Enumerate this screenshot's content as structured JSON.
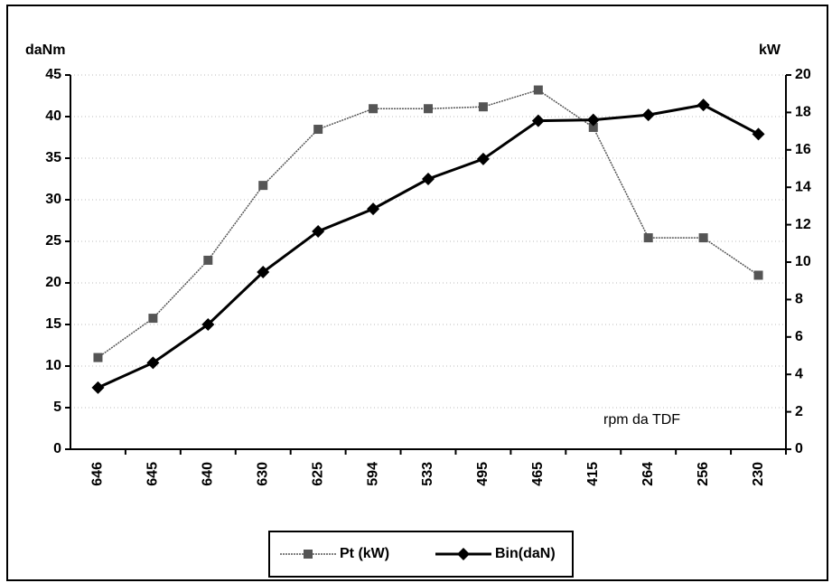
{
  "chart_data": {
    "type": "line",
    "y_label": "daNm",
    "y2_label": "kW",
    "annotation": "rpm da TDF",
    "categories": [
      "646",
      "645",
      "640",
      "630",
      "625",
      "594",
      "533",
      "495",
      "465",
      "415",
      "264",
      "256",
      "230"
    ],
    "series": [
      {
        "name": "Pt (kW)",
        "color": "#555555",
        "axis": "y2",
        "marker": "square",
        "values": [
          4.9,
          7.0,
          10.1,
          14.1,
          17.1,
          18.2,
          18.2,
          18.3,
          19.2,
          17.2,
          11.3,
          11.3,
          9.3
        ]
      },
      {
        "name": "Bin(daN)",
        "color": "#000000",
        "marker": "diamond",
        "values": [
          7.4,
          10.4,
          15.0,
          21.3,
          26.2,
          28.9,
          32.5,
          34.9,
          39.5,
          39.6,
          40.2,
          41.4,
          37.9
        ]
      }
    ],
    "ylim": [
      0,
      45
    ],
    "yticks": [
      0,
      5,
      10,
      15,
      20,
      25,
      30,
      35,
      40,
      45
    ],
    "y2lim": [
      0,
      20
    ],
    "y2ticks": [
      0,
      2,
      4,
      6,
      8,
      10,
      12,
      14,
      16,
      18,
      20
    ],
    "grid": true,
    "legend": "bottom"
  }
}
